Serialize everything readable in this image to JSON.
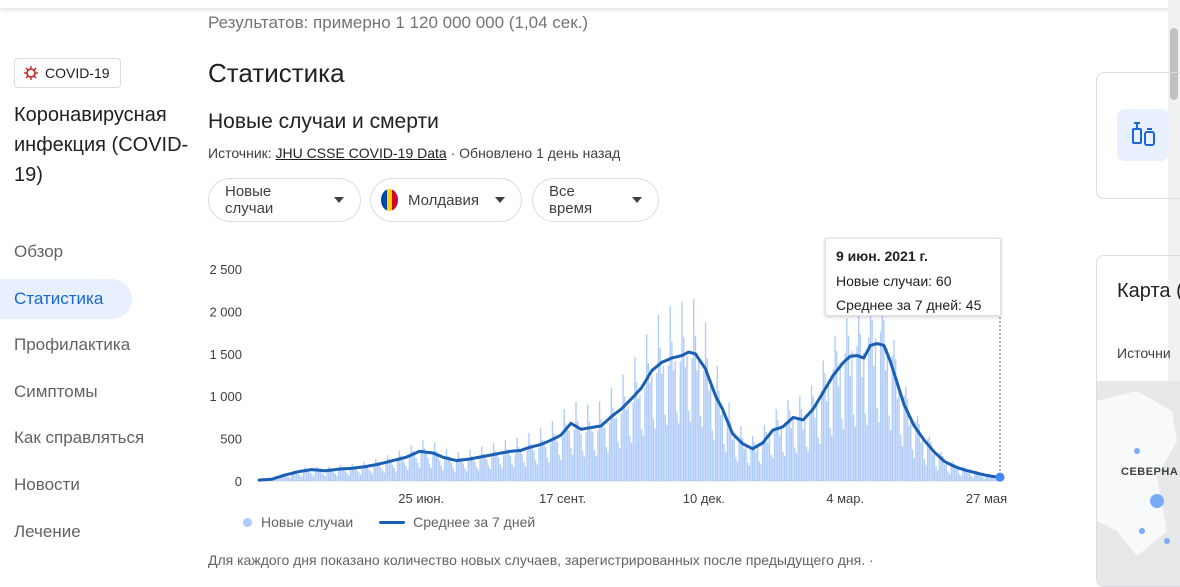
{
  "results_text": "Результатов: примерно 1 120 000 000 (1,04 сек.)",
  "sidebar": {
    "chip_label": "COVID-19",
    "disease_title": "Коронавирусная инфекция (COVID-19)",
    "nav": [
      {
        "label": "Обзор",
        "active": false
      },
      {
        "label": "Статистика",
        "active": true
      },
      {
        "label": "Профилактика",
        "active": false
      },
      {
        "label": "Симптомы",
        "active": false
      },
      {
        "label": "Как справляться",
        "active": false
      },
      {
        "label": "Новости",
        "active": false
      },
      {
        "label": "Лечение",
        "active": false
      }
    ]
  },
  "main": {
    "title": "Статистика",
    "subtitle": "Новые случаи и смерти",
    "source_prefix": "Источник:",
    "source_link": "JHU CSSE COVID-19 Data",
    "updated": "· Обновлено 1 день назад",
    "dropdowns": {
      "metric": "Новые случаи",
      "country": "Молдавия",
      "period": "Все время"
    },
    "tooltip": {
      "date": "9 июн. 2021 г.",
      "new_cases": "Новые случаи: 60",
      "avg": "Среднее за 7 дней: 45"
    },
    "legend": {
      "bars": "Новые случаи",
      "line": "Среднее за 7 дней"
    },
    "footnote": "Для каждого дня показано количество новых случаев, зарегистрированных после предыдущего дня.  ·"
  },
  "right": {
    "map_title": "Карта (за по",
    "map_source": "Источни",
    "map_label": "СЕВЕРНА АМЕРИК"
  },
  "colors": {
    "bars": "#aecbfa",
    "line": "#1a5fb4",
    "accent": "#1967d2",
    "moldova_flag": [
      "#0046ae",
      "#ffd200",
      "#cc092f"
    ]
  },
  "chart_data": {
    "type": "bar",
    "ylim": [
      0,
      2500
    ],
    "yticks": [
      0,
      500,
      1000,
      1500,
      2000,
      2500
    ],
    "ytick_labels": [
      "0",
      "500",
      "1 000",
      "1 500",
      "2 000",
      "2 500"
    ],
    "xtick_labels": [
      "25 июн.",
      "17 сент.",
      "10 дек.",
      "4 мар.",
      "27 мая"
    ],
    "xtick_day_index": [
      97,
      181,
      265,
      349,
      433
    ],
    "series": [
      {
        "name": "Среднее за 7 дней",
        "anchors_day_value": [
          [
            0,
            10
          ],
          [
            8,
            20
          ],
          [
            16,
            70
          ],
          [
            24,
            110
          ],
          [
            32,
            135
          ],
          [
            40,
            120
          ],
          [
            48,
            140
          ],
          [
            56,
            150
          ],
          [
            64,
            170
          ],
          [
            72,
            200
          ],
          [
            80,
            240
          ],
          [
            88,
            280
          ],
          [
            96,
            350
          ],
          [
            104,
            330
          ],
          [
            110,
            280
          ],
          [
            118,
            240
          ],
          [
            126,
            260
          ],
          [
            134,
            290
          ],
          [
            142,
            320
          ],
          [
            150,
            350
          ],
          [
            156,
            360
          ],
          [
            162,
            400
          ],
          [
            168,
            430
          ],
          [
            174,
            480
          ],
          [
            180,
            540
          ],
          [
            186,
            680
          ],
          [
            192,
            610
          ],
          [
            198,
            630
          ],
          [
            204,
            650
          ],
          [
            210,
            760
          ],
          [
            216,
            850
          ],
          [
            222,
            970
          ],
          [
            228,
            1100
          ],
          [
            234,
            1300
          ],
          [
            240,
            1400
          ],
          [
            246,
            1450
          ],
          [
            252,
            1480
          ],
          [
            256,
            1520
          ],
          [
            260,
            1500
          ],
          [
            266,
            1320
          ],
          [
            272,
            1000
          ],
          [
            276,
            850
          ],
          [
            282,
            560
          ],
          [
            288,
            440
          ],
          [
            294,
            380
          ],
          [
            300,
            450
          ],
          [
            306,
            600
          ],
          [
            312,
            640
          ],
          [
            318,
            750
          ],
          [
            324,
            720
          ],
          [
            330,
            850
          ],
          [
            336,
            1050
          ],
          [
            342,
            1250
          ],
          [
            348,
            1400
          ],
          [
            352,
            1470
          ],
          [
            356,
            1480
          ],
          [
            360,
            1450
          ],
          [
            364,
            1600
          ],
          [
            368,
            1620
          ],
          [
            372,
            1600
          ],
          [
            376,
            1400
          ],
          [
            380,
            1150
          ],
          [
            384,
            900
          ],
          [
            390,
            650
          ],
          [
            396,
            480
          ],
          [
            402,
            340
          ],
          [
            408,
            230
          ],
          [
            414,
            170
          ],
          [
            420,
            130
          ],
          [
            426,
            100
          ],
          [
            432,
            70
          ],
          [
            438,
            50
          ],
          [
            441,
            45
          ]
        ]
      }
    ],
    "bars_note": "daily new cases bars, shown as light blue columns behind the 7-day average",
    "hover": {
      "date": "9 июн. 2021 г.",
      "new_cases": 60,
      "avg_7d": 45
    }
  }
}
